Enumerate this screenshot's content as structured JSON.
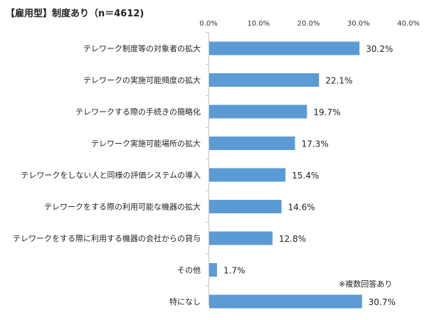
{
  "chart_data": {
    "type": "bar",
    "orientation": "horizontal",
    "title": "【雇用型】制度あり（n＝4612)",
    "note": "※複数回答あり",
    "categories": [
      "テレワーク制度等の対象者の拡大",
      "テレワークの実施可能頻度の拡大",
      "テレワークする際の手続きの簡略化",
      "テレワーク実施可能場所の拡大",
      "テレワークをしない人と同様の評価システムの導入",
      "テレワークをする際の利用可能な機器の拡大",
      "テレワークをする際に利用する機器の会社からの貸与",
      "その他",
      "特になし"
    ],
    "values": [
      30.2,
      22.1,
      19.7,
      17.3,
      15.4,
      14.6,
      12.8,
      1.7,
      30.7
    ],
    "value_labels": [
      "30.2%",
      "22.1%",
      "19.7%",
      "17.3%",
      "15.4%",
      "14.6%",
      "12.8%",
      "1.7%",
      "30.7%"
    ],
    "xlim": [
      0,
      40
    ],
    "x_ticks": [
      0,
      10,
      20,
      30,
      40
    ],
    "x_tick_labels": [
      "0.0%",
      "10.0%",
      "20.0%",
      "30.0%",
      "40.0%"
    ],
    "x_axis_position": "top",
    "grid": false,
    "bar_color": "#5b9bd5",
    "axis_color": "#bfbfbf"
  }
}
